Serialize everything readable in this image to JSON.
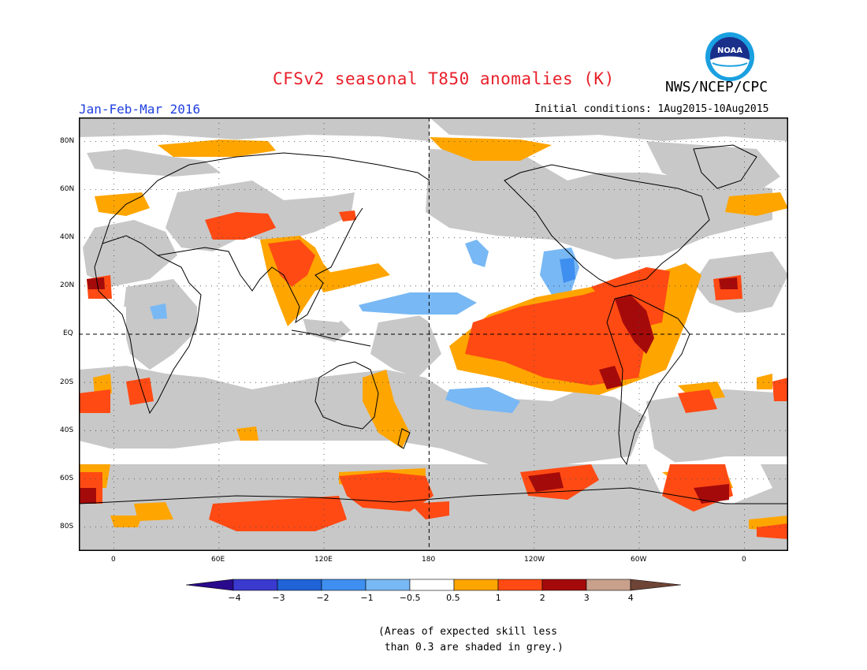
{
  "header": {
    "title": "CFSv2 seasonal T850 anomalies (K)",
    "agency": "NWS/NCEP/CPC",
    "logo_text": "NOAA",
    "season": "Jan-Feb-Mar 2016",
    "initial_conditions": "Initial conditions: 1Aug2015-10Aug2015"
  },
  "axes": {
    "lat_labels": [
      "80N",
      "60N",
      "40N",
      "20N",
      "EQ",
      "20S",
      "40S",
      "60S",
      "80S"
    ],
    "lat_values": [
      80,
      60,
      40,
      20,
      0,
      -20,
      -40,
      -60,
      -80
    ],
    "lon_labels": [
      "0",
      "60E",
      "120E",
      "180",
      "120W",
      "60W",
      "0"
    ],
    "lon_values": [
      0,
      60,
      120,
      180,
      240,
      300,
      360
    ],
    "lon_range": [
      -20,
      385
    ],
    "lat_range": [
      -90,
      90
    ]
  },
  "colorbar": {
    "colors": [
      "#2a0a8c",
      "#3a3acf",
      "#1f63d6",
      "#3f8ff0",
      "#78b8f4",
      "#ffffff",
      "#ffa500",
      "#ff4a14",
      "#a50a0a",
      "#c8a08c",
      "#6e4436"
    ],
    "labels": [
      "−4",
      "−3",
      "−2",
      "−1",
      "−0.5",
      "0.5",
      "1",
      "2",
      "3",
      "4"
    ]
  },
  "legend_colors": {
    "grey": "#c8c8c8",
    "orange": "#ffa500",
    "red": "#ff4a14",
    "darkred": "#a50a0a",
    "lightblue": "#78b8f4",
    "blue": "#3f8ff0"
  },
  "footnote": "(Areas of expected skill less\n than 0.3 are shaded in grey.)"
}
